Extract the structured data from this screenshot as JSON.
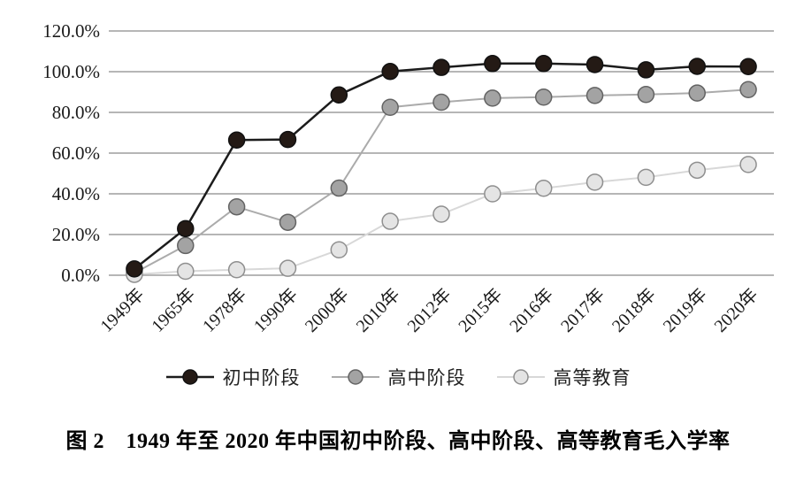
{
  "caption": "图 2　1949 年至 2020 年中国初中阶段、高中阶段、高等教育毛入学率",
  "colors": {
    "background": "#ffffff",
    "gridline": "#8a8a8a",
    "tick_text": "#1a1a1a",
    "caption_text": "#000000"
  },
  "chart_data": {
    "type": "line",
    "title": "",
    "xlabel": "",
    "ylabel": "",
    "ylim": [
      0,
      120
    ],
    "grid": true,
    "legend_position": "bottom",
    "y_ticks": [
      "0.0%",
      "20.0%",
      "40.0%",
      "60.0%",
      "80.0%",
      "100.0%",
      "120.0%"
    ],
    "categories": [
      "1949年",
      "1965年",
      "1978年",
      "1990年",
      "2000年",
      "2010年",
      "2012年",
      "2015年",
      "2016年",
      "2017年",
      "2018年",
      "2019年",
      "2020年"
    ],
    "series": [
      {
        "key": "junior-secondary",
        "name": "初中阶段",
        "values": [
          3.1,
          22.9,
          66.4,
          66.7,
          88.6,
          100.1,
          102.1,
          104.0,
          104.0,
          103.5,
          100.9,
          102.6,
          102.5
        ],
        "line_color": "#1c1c1c",
        "marker_fill": "#241a15",
        "marker_stroke": "#111111"
      },
      {
        "key": "senior-secondary",
        "name": "高中阶段",
        "values": [
          1.1,
          14.6,
          33.6,
          26.0,
          42.8,
          82.5,
          85.0,
          87.0,
          87.5,
          88.3,
          88.8,
          89.5,
          91.2
        ],
        "line_color": "#ababab",
        "marker_fill": "#a3a3a3",
        "marker_stroke": "#636363"
      },
      {
        "key": "higher-education",
        "name": "高等教育",
        "values": [
          0.4,
          1.95,
          2.7,
          3.4,
          12.5,
          26.5,
          30.0,
          40.0,
          42.7,
          45.7,
          48.1,
          51.6,
          54.4
        ],
        "line_color": "#d8d8d8",
        "marker_fill": "#e4e4e4",
        "marker_stroke": "#8f8f8f"
      }
    ]
  }
}
